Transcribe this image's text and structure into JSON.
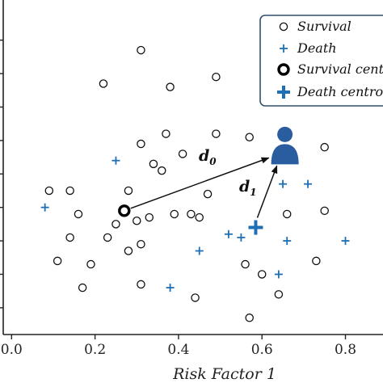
{
  "chart_data": {
    "type": "scatter",
    "xlabel": "Risk Factor 1",
    "xlim": [
      -0.02,
      0.89
    ],
    "ylim": [
      0,
      1
    ],
    "x_ticks": [
      0.0,
      0.2,
      0.4,
      0.6,
      0.8
    ],
    "x_tick_labels": [
      "0.0",
      "0.2",
      "0.4",
      "0.6",
      "0.8"
    ],
    "y_ticks": [
      0.08,
      0.18,
      0.28,
      0.38,
      0.48,
      0.58,
      0.68,
      0.78,
      0.88
    ],
    "legend_position": "top-right",
    "legend": {
      "survival": "Survival",
      "death": "Death",
      "survival_centroid": "Survival centroid",
      "death_centroid": "Death centroid"
    },
    "colors": {
      "survival": "#111111",
      "death": "#1f6fb4",
      "patient": "#2a5d9f",
      "legend_border": "#2f4f6f"
    },
    "series": [
      {
        "name": "Survival",
        "marker": "circle",
        "points": [
          [
            0.31,
            0.85
          ],
          [
            0.22,
            0.75
          ],
          [
            0.38,
            0.74
          ],
          [
            0.49,
            0.77
          ],
          [
            0.31,
            0.57
          ],
          [
            0.37,
            0.6
          ],
          [
            0.49,
            0.6
          ],
          [
            0.57,
            0.59
          ],
          [
            0.75,
            0.56
          ],
          [
            0.34,
            0.51
          ],
          [
            0.41,
            0.54
          ],
          [
            0.36,
            0.49
          ],
          [
            0.09,
            0.43
          ],
          [
            0.14,
            0.43
          ],
          [
            0.28,
            0.43
          ],
          [
            0.47,
            0.42
          ],
          [
            0.39,
            0.36
          ],
          [
            0.3,
            0.34
          ],
          [
            0.33,
            0.35
          ],
          [
            0.43,
            0.36
          ],
          [
            0.45,
            0.35
          ],
          [
            0.66,
            0.36
          ],
          [
            0.75,
            0.37
          ],
          [
            0.16,
            0.36
          ],
          [
            0.25,
            0.33
          ],
          [
            0.14,
            0.29
          ],
          [
            0.23,
            0.29
          ],
          [
            0.31,
            0.27
          ],
          [
            0.28,
            0.25
          ],
          [
            0.11,
            0.22
          ],
          [
            0.19,
            0.21
          ],
          [
            0.56,
            0.21
          ],
          [
            0.73,
            0.22
          ],
          [
            0.31,
            0.15
          ],
          [
            0.17,
            0.14
          ],
          [
            0.6,
            0.18
          ],
          [
            0.44,
            0.11
          ],
          [
            0.64,
            0.12
          ],
          [
            0.57,
            0.05
          ]
        ]
      },
      {
        "name": "Death",
        "marker": "plus",
        "points": [
          [
            0.25,
            0.52
          ],
          [
            0.08,
            0.38
          ],
          [
            0.38,
            0.14
          ],
          [
            0.45,
            0.25
          ],
          [
            0.52,
            0.3
          ],
          [
            0.55,
            0.29
          ],
          [
            0.65,
            0.45
          ],
          [
            0.71,
            0.45
          ],
          [
            0.66,
            0.28
          ],
          [
            0.64,
            0.18
          ],
          [
            0.8,
            0.28
          ]
        ]
      }
    ],
    "survival_centroid": [
      0.27,
      0.37
    ],
    "death_centroid": [
      0.585,
      0.32
    ],
    "patient": [
      0.655,
      0.545
    ],
    "distance_labels": {
      "d0": {
        "base": "d",
        "sub": "0"
      },
      "d1": {
        "base": "d",
        "sub": "1"
      }
    }
  }
}
